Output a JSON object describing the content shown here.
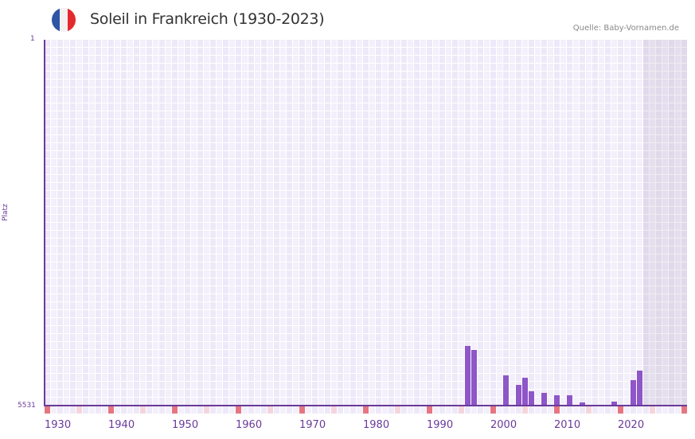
{
  "header": {
    "title": "Soleil in Frankreich (1930-2023)",
    "source": "Quelle: Baby-Vornamen.de",
    "flag_colors": [
      "#2e55a6",
      "#f2f2f2",
      "#e52a2f"
    ]
  },
  "axes": {
    "y_top_label": "1",
    "y_bottom_label": "5531",
    "y_title": "Platz",
    "x_ticks": [
      "1930",
      "1940",
      "1950",
      "1960",
      "1970",
      "1980",
      "1990",
      "2000",
      "2010",
      "2020"
    ]
  },
  "colors": {
    "bar": "#8e56c8",
    "axis": "#6a3a9a",
    "decade_marker": "#e57680",
    "half_decade_marker": "#f5d5dc",
    "grid_a": "#eee9f8",
    "grid_b": "#f3f0fb"
  },
  "chart_data": {
    "type": "bar",
    "title": "Soleil in Frankreich (1930-2023)",
    "xlabel": "",
    "ylabel": "Platz",
    "ylim": [
      5531,
      1
    ],
    "y_inverted": true,
    "x_range": [
      1930,
      2030
    ],
    "shaded_future_from": 2024,
    "grid": true,
    "legend": null,
    "categories": [
      1996,
      1997,
      2002,
      2004,
      2005,
      2006,
      2008,
      2010,
      2012,
      2014,
      2019,
      2022,
      2023
    ],
    "values": [
      4630,
      4690,
      5075,
      5220,
      5110,
      5315,
      5340,
      5375,
      5375,
      5480,
      5470,
      5145,
      5000
    ]
  }
}
